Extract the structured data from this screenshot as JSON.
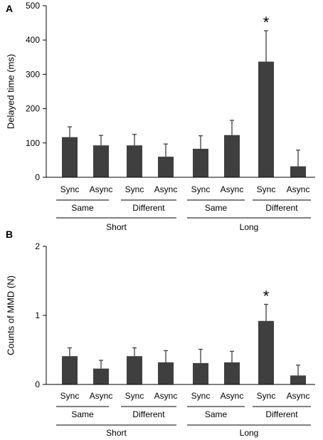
{
  "bar_color": "#3f3f3f",
  "chart_data": [
    {
      "type": "bar",
      "panel_label": "A",
      "ylabel": "Delayed time (ms)",
      "ylim": [
        0,
        500
      ],
      "yticks": [
        0,
        100,
        200,
        300,
        400,
        500
      ],
      "categories": [
        "Sync",
        "Async",
        "Sync",
        "Async",
        "Sync",
        "Async",
        "Sync",
        "Async"
      ],
      "values": [
        117,
        93,
        93,
        60,
        83,
        123,
        337,
        32
      ],
      "errors": [
        30,
        29,
        32,
        37,
        38,
        43,
        90,
        47
      ],
      "significance": [
        "",
        "",
        "",
        "",
        "",
        "",
        "*",
        ""
      ],
      "group_labels_level1": [
        "Same",
        "Different",
        "Same",
        "Different"
      ],
      "group_labels_level2": [
        "Short",
        "Long"
      ]
    },
    {
      "type": "bar",
      "panel_label": "B",
      "ylabel": "Counts of MMD (N)",
      "ylim": [
        0,
        2
      ],
      "yticks": [
        0,
        1,
        2
      ],
      "categories": [
        "Sync",
        "Async",
        "Sync",
        "Async",
        "Sync",
        "Async",
        "Sync",
        "Async"
      ],
      "values": [
        0.41,
        0.23,
        0.41,
        0.32,
        0.31,
        0.32,
        0.92,
        0.13
      ],
      "errors": [
        0.12,
        0.12,
        0.12,
        0.17,
        0.2,
        0.16,
        0.24,
        0.15
      ],
      "significance": [
        "",
        "",
        "",
        "",
        "",
        "",
        "*",
        ""
      ],
      "group_labels_level1": [
        "Same",
        "Different",
        "Same",
        "Different"
      ],
      "group_labels_level2": [
        "Short",
        "Long"
      ]
    }
  ]
}
